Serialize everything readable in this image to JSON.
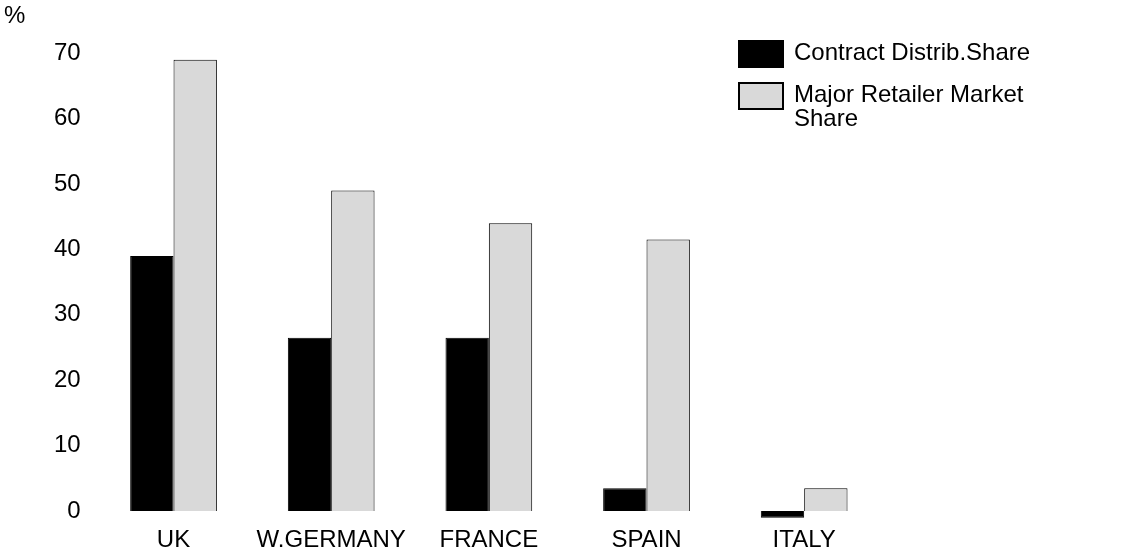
{
  "chart_data": {
    "type": "bar",
    "ylabel": "%",
    "categories": [
      "UK",
      "W.GERMANY",
      "FRANCE",
      "SPAIN",
      "ITALY"
    ],
    "series": [
      {
        "name": "Contract Distrib.Share",
        "color": "#000000",
        "values": [
          39,
          26.5,
          26.5,
          3.5,
          -1
        ]
      },
      {
        "name": "Major Retailer Market Share",
        "color": "#d9d9d9",
        "values": [
          69,
          49,
          44,
          41.5,
          3.5
        ]
      }
    ],
    "ylim": [
      -2,
      72
    ],
    "yticks": [
      0,
      10,
      20,
      30,
      40,
      50,
      60,
      70
    ],
    "grid": false,
    "legend": "top right"
  }
}
